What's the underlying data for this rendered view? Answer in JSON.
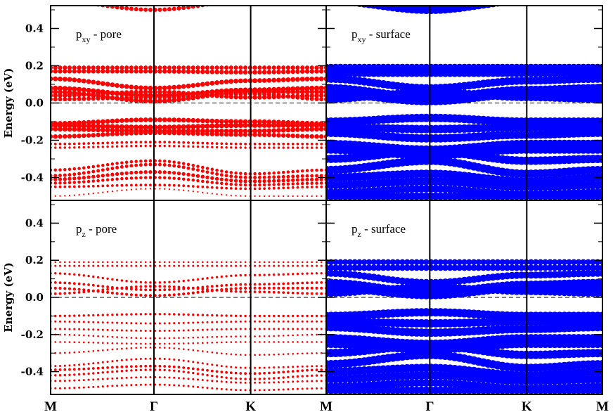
{
  "chart_data": {
    "type": "scatter",
    "title": "",
    "ylabel": "Energy (eV)",
    "ylim": [
      -0.5,
      0.5
    ],
    "yticks": [
      "0.4",
      "0.2",
      "0.0",
      "-0.2",
      "-0.4"
    ],
    "kpoint_labels": [
      "M",
      "Γ",
      "K",
      "M",
      "Γ",
      "K",
      "M"
    ],
    "fermi_level": 0.0,
    "grid": false,
    "panels": [
      {
        "row": "top",
        "column": "left",
        "orbital": "p",
        "subscript": "xy",
        "site": "pore",
        "label_suffix": " - pore",
        "color": "#ff0000",
        "series": [
          {
            "name": "",
            "values": [
              0.19,
              0.19,
              0.19,
              0.19
            ],
            "weight": 0.8
          },
          {
            "name": "",
            "values": [
              0.17,
              0.17,
              0.165,
              0.17
            ],
            "weight": 0.85
          },
          {
            "name": "",
            "values": [
              0.13,
              0.08,
              0.12,
              0.13
            ],
            "weight": 0.9
          },
          {
            "name": "",
            "values": [
              0.08,
              0.04,
              0.07,
              0.08
            ],
            "weight": 0.95
          },
          {
            "name": "",
            "values": [
              0.06,
              0.01,
              0.06,
              0.06
            ],
            "weight": 0.9
          },
          {
            "name": "",
            "values": [
              0.04,
              0.06,
              0.03,
              0.04
            ],
            "weight": 0.85
          },
          {
            "name": "",
            "values": [
              0.02,
              0.03,
              0.05,
              0.02
            ],
            "weight": 0.8
          },
          {
            "name": "",
            "values": [
              -0.11,
              -0.09,
              -0.1,
              -0.11
            ],
            "weight": 0.9
          },
          {
            "name": "",
            "values": [
              -0.12,
              -0.13,
              -0.12,
              -0.12
            ],
            "weight": 0.95
          },
          {
            "name": "",
            "values": [
              -0.14,
              -0.15,
              -0.15,
              -0.14
            ],
            "weight": 0.9
          },
          {
            "name": "",
            "values": [
              -0.18,
              -0.16,
              -0.17,
              -0.18
            ],
            "weight": 0.85
          },
          {
            "name": "",
            "values": [
              -0.22,
              -0.21,
              -0.22,
              -0.22
            ],
            "weight": 0.5
          },
          {
            "name": "",
            "values": [
              -0.24,
              -0.23,
              -0.24,
              -0.24
            ],
            "weight": 0.45
          },
          {
            "name": "",
            "values": [
              -0.36,
              -0.31,
              -0.38,
              -0.36
            ],
            "weight": 0.6
          },
          {
            "name": "",
            "values": [
              -0.39,
              -0.33,
              -0.4,
              -0.39
            ],
            "weight": 0.65
          },
          {
            "name": "",
            "values": [
              -0.41,
              -0.37,
              -0.42,
              -0.41
            ],
            "weight": 0.7
          },
          {
            "name": "",
            "values": [
              -0.43,
              -0.4,
              -0.44,
              -0.43
            ],
            "weight": 0.6
          },
          {
            "name": "",
            "values": [
              -0.45,
              -0.44,
              -0.46,
              -0.45
            ],
            "weight": 0.5
          },
          {
            "name": "",
            "values": [
              -0.5,
              -0.46,
              -0.5,
              -0.5
            ],
            "weight": 0.3
          },
          {
            "name": "",
            "values": [
              0.55,
              0.5,
              0.55,
              0.55
            ],
            "weight": 0.8
          }
        ]
      },
      {
        "row": "top",
        "column": "right",
        "orbital": "p",
        "subscript": "xy",
        "site": "surface",
        "label_suffix": " - surface",
        "color": "#0000ff",
        "series": [
          {
            "name": "",
            "values": [
              0.19,
              0.19,
              0.19,
              0.19
            ],
            "weight": 0.9
          },
          {
            "name": "",
            "values": [
              0.16,
              0.16,
              0.16,
              0.16
            ],
            "weight": 0.9
          },
          {
            "name": "",
            "values": [
              0.13,
              0.08,
              0.12,
              0.13
            ],
            "weight": 0.95
          },
          {
            "name": "",
            "values": [
              0.08,
              0.03,
              0.07,
              0.08
            ],
            "weight": 1.0
          },
          {
            "name": "",
            "values": [
              0.05,
              0.01,
              0.05,
              0.05
            ],
            "weight": 1.0
          },
          {
            "name": "",
            "values": [
              0.02,
              0.06,
              0.03,
              0.02
            ],
            "weight": 0.9
          },
          {
            "name": "",
            "values": [
              -0.1,
              -0.08,
              -0.1,
              -0.1
            ],
            "weight": 1.0
          },
          {
            "name": "",
            "values": [
              -0.13,
              -0.14,
              -0.13,
              -0.13
            ],
            "weight": 1.0
          },
          {
            "name": "",
            "values": [
              -0.16,
              -0.19,
              -0.17,
              -0.16
            ],
            "weight": 1.0
          },
          {
            "name": "",
            "values": [
              -0.22,
              -0.25,
              -0.22,
              -0.22
            ],
            "weight": 1.0
          },
          {
            "name": "",
            "values": [
              -0.25,
              -0.28,
              -0.25,
              -0.25
            ],
            "weight": 1.0
          },
          {
            "name": "",
            "values": [
              -0.3,
              -0.26,
              -0.31,
              -0.3
            ],
            "weight": 1.0
          },
          {
            "name": "",
            "values": [
              -0.36,
              -0.31,
              -0.38,
              -0.36
            ],
            "weight": 1.0
          },
          {
            "name": "",
            "values": [
              -0.4,
              -0.38,
              -0.42,
              -0.4
            ],
            "weight": 1.0
          },
          {
            "name": "",
            "values": [
              -0.44,
              -0.42,
              -0.45,
              -0.44
            ],
            "weight": 1.0
          },
          {
            "name": "",
            "values": [
              -0.48,
              -0.46,
              -0.49,
              -0.48
            ],
            "weight": 0.9
          },
          {
            "name": "",
            "values": [
              -0.5,
              -0.5,
              -0.5,
              -0.5
            ],
            "weight": 0.9
          },
          {
            "name": "",
            "values": [
              0.55,
              0.5,
              0.55,
              0.55
            ],
            "weight": 1.0
          }
        ]
      },
      {
        "row": "bottom",
        "column": "left",
        "orbital": "p",
        "subscript": "z",
        "site": "pore",
        "label_suffix": " - pore",
        "color": "#ff0000",
        "series": [
          {
            "name": "",
            "values": [
              0.19,
              0.19,
              0.19,
              0.19
            ],
            "weight": 0.35
          },
          {
            "name": "",
            "values": [
              0.17,
              0.17,
              0.17,
              0.17
            ],
            "weight": 0.4
          },
          {
            "name": "",
            "values": [
              0.13,
              0.08,
              0.12,
              0.13
            ],
            "weight": 0.45
          },
          {
            "name": "",
            "values": [
              0.08,
              0.04,
              0.07,
              0.08
            ],
            "weight": 0.5
          },
          {
            "name": "",
            "values": [
              0.05,
              0.01,
              0.05,
              0.05
            ],
            "weight": 0.55
          },
          {
            "name": "",
            "values": [
              0.02,
              0.06,
              0.03,
              0.02
            ],
            "weight": 0.5
          },
          {
            "name": "",
            "values": [
              -0.1,
              -0.09,
              -0.1,
              -0.1
            ],
            "weight": 0.45
          },
          {
            "name": "",
            "values": [
              -0.13,
              -0.14,
              -0.13,
              -0.13
            ],
            "weight": 0.4
          },
          {
            "name": "",
            "values": [
              -0.17,
              -0.18,
              -0.17,
              -0.17
            ],
            "weight": 0.4
          },
          {
            "name": "",
            "values": [
              -0.2,
              -0.22,
              -0.21,
              -0.2
            ],
            "weight": 0.35
          },
          {
            "name": "",
            "values": [
              -0.24,
              -0.25,
              -0.24,
              -0.24
            ],
            "weight": 0.35
          },
          {
            "name": "",
            "values": [
              -0.3,
              -0.27,
              -0.31,
              -0.3
            ],
            "weight": 0.35
          },
          {
            "name": "",
            "values": [
              -0.37,
              -0.33,
              -0.38,
              -0.37
            ],
            "weight": 0.4
          },
          {
            "name": "",
            "values": [
              -0.39,
              -0.37,
              -0.41,
              -0.39
            ],
            "weight": 0.5
          },
          {
            "name": "",
            "values": [
              -0.42,
              -0.39,
              -0.44,
              -0.42
            ],
            "weight": 0.45
          },
          {
            "name": "",
            "values": [
              -0.45,
              -0.43,
              -0.46,
              -0.45
            ],
            "weight": 0.4
          },
          {
            "name": "",
            "values": [
              -0.49,
              -0.47,
              -0.5,
              -0.49
            ],
            "weight": 0.4
          }
        ]
      },
      {
        "row": "bottom",
        "column": "right",
        "orbital": "p",
        "subscript": "z",
        "site": "surface",
        "label_suffix": " - surface",
        "color": "#0000ff",
        "series": [
          {
            "name": "",
            "values": [
              0.19,
              0.19,
              0.19,
              0.19
            ],
            "weight": 0.7
          },
          {
            "name": "",
            "values": [
              0.16,
              0.16,
              0.16,
              0.16
            ],
            "weight": 0.75
          },
          {
            "name": "",
            "values": [
              0.13,
              0.08,
              0.12,
              0.13
            ],
            "weight": 0.85
          },
          {
            "name": "",
            "values": [
              0.08,
              0.03,
              0.07,
              0.08
            ],
            "weight": 0.9
          },
          {
            "name": "",
            "values": [
              0.05,
              0.01,
              0.05,
              0.05
            ],
            "weight": 0.9
          },
          {
            "name": "",
            "values": [
              0.02,
              0.06,
              0.03,
              0.02
            ],
            "weight": 0.8
          },
          {
            "name": "",
            "values": [
              -0.1,
              -0.08,
              -0.1,
              -0.1
            ],
            "weight": 1.0
          },
          {
            "name": "",
            "values": [
              -0.13,
              -0.14,
              -0.13,
              -0.13
            ],
            "weight": 1.0
          },
          {
            "name": "",
            "values": [
              -0.16,
              -0.19,
              -0.17,
              -0.16
            ],
            "weight": 1.0
          },
          {
            "name": "",
            "values": [
              -0.22,
              -0.25,
              -0.22,
              -0.22
            ],
            "weight": 1.0
          },
          {
            "name": "",
            "values": [
              -0.25,
              -0.28,
              -0.25,
              -0.25
            ],
            "weight": 1.0
          },
          {
            "name": "",
            "values": [
              -0.3,
              -0.26,
              -0.31,
              -0.3
            ],
            "weight": 1.0
          },
          {
            "name": "",
            "values": [
              -0.36,
              -0.31,
              -0.38,
              -0.36
            ],
            "weight": 1.0
          },
          {
            "name": "",
            "values": [
              -0.4,
              -0.38,
              -0.42,
              -0.4
            ],
            "weight": 1.0
          },
          {
            "name": "",
            "values": [
              -0.44,
              -0.42,
              -0.45,
              -0.44
            ],
            "weight": 1.0
          },
          {
            "name": "",
            "values": [
              -0.48,
              -0.46,
              -0.49,
              -0.48
            ],
            "weight": 0.9
          },
          {
            "name": "",
            "values": [
              -0.5,
              -0.5,
              -0.5,
              -0.5
            ],
            "weight": 0.9
          }
        ]
      }
    ]
  }
}
